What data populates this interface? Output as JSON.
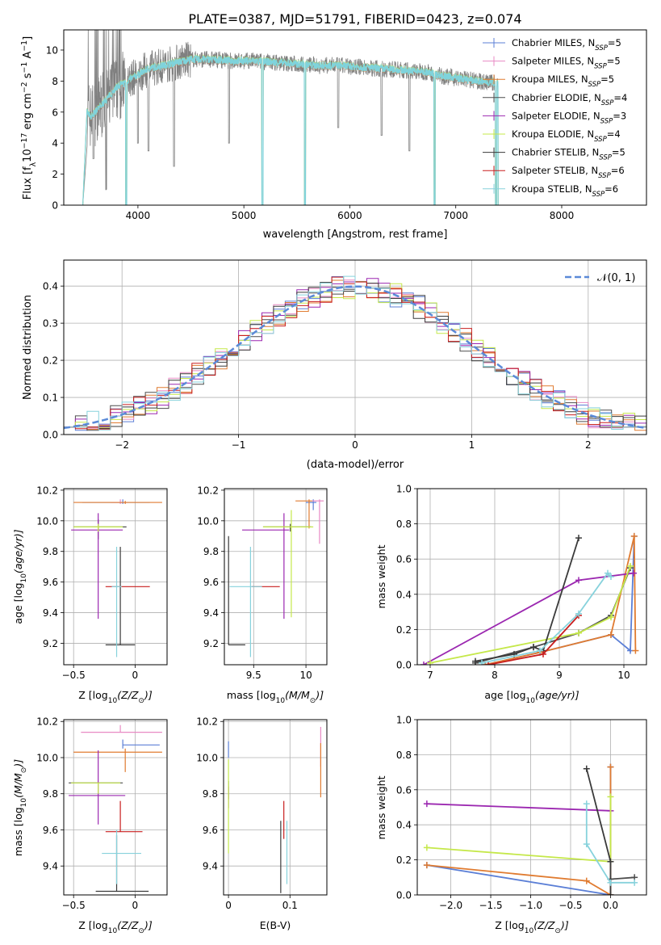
{
  "figure_title": "PLATE=0387, MJD=51791, FIBERID=0423, z=0.074",
  "models": [
    {
      "name": "Chabrier MILES, N",
      "sub": "SSP",
      "n": "=5",
      "color": "#5b7fd6"
    },
    {
      "name": "Salpeter MILES, N",
      "sub": "SSP",
      "n": "=5",
      "color": "#e88ac4"
    },
    {
      "name": "Kroupa MILES, N",
      "sub": "SSP",
      "n": "=5",
      "color": "#e07b30"
    },
    {
      "name": "Chabrier ELODIE, N",
      "sub": "SSP",
      "n": "=4",
      "color": "#4d4d4d"
    },
    {
      "name": "Salpeter ELODIE, N",
      "sub": "SSP",
      "n": "=3",
      "color": "#9b27b0"
    },
    {
      "name": "Kroupa ELODIE, N",
      "sub": "SSP",
      "n": "=4",
      "color": "#c5e84a"
    },
    {
      "name": "Chabrier STELIB, N",
      "sub": "SSP",
      "n": "=5",
      "color": "#3a3a3a"
    },
    {
      "name": "Salpeter STELIB, N",
      "sub": "SSP",
      "n": "=6",
      "color": "#c81e1e"
    },
    {
      "name": "Kroupa STELIB, N",
      "sub": "SSP",
      "n": "=6",
      "color": "#87d2dc"
    }
  ],
  "chart_data": [
    {
      "id": "spectrum",
      "type": "line",
      "xlabel": "wavelength [Angstrom, rest frame]",
      "ylabel_parts": [
        "Flux [f",
        "λ",
        "10",
        "−17",
        " erg cm",
        "−2",
        " s",
        "−1",
        " A",
        "−1",
        "]"
      ],
      "xlim": [
        3300,
        8800
      ],
      "ylim": [
        0,
        11.3
      ],
      "xticks": [
        4000,
        5000,
        6000,
        7000,
        8000
      ],
      "yticks": [
        0,
        2,
        4,
        6,
        8,
        10
      ],
      "data_color": "#808080",
      "model_color": "#7fd3dc",
      "anchor_x": [
        3520,
        3560,
        3650,
        3800,
        3950,
        4100,
        4300,
        4500,
        4700,
        4900,
        5100,
        5300,
        5500,
        5700,
        5900,
        6100,
        6300,
        6500,
        6700,
        6900,
        7100,
        7300,
        7400
      ],
      "anchor_y": [
        6.0,
        5.7,
        6.4,
        7.6,
        8.2,
        8.8,
        9.1,
        9.4,
        9.4,
        9.3,
        9.3,
        9.2,
        9.1,
        9.0,
        9.0,
        8.9,
        8.8,
        8.7,
        8.6,
        8.3,
        8.1,
        7.9,
        7.9
      ],
      "dips": [
        [
          3580,
          3.0
        ],
        [
          3700,
          1.0
        ],
        [
          3890,
          0.0
        ],
        [
          4000,
          4.0
        ],
        [
          4100,
          3.5
        ],
        [
          4340,
          2.5
        ],
        [
          4860,
          4.0
        ],
        [
          5175,
          0.0
        ],
        [
          5577,
          0.0
        ],
        [
          5890,
          5.0
        ],
        [
          6300,
          4.5
        ],
        [
          6563,
          3.5
        ],
        [
          6800,
          0.0
        ],
        [
          7380,
          0.0
        ]
      ]
    },
    {
      "id": "residual_hist",
      "type": "histogram",
      "xlabel": "(data-model)/error",
      "ylabel": "Normed distribution",
      "xlim": [
        -2.5,
        2.5
      ],
      "ylim": [
        0,
        0.47
      ],
      "xticks": [
        -2,
        -1,
        0,
        1,
        2
      ],
      "yticks": [
        0.0,
        0.1,
        0.2,
        0.3,
        0.4
      ],
      "legend_label": "𝒩(0, 1)",
      "gaussian_color": "#5b8ad8",
      "bin_width": 0.1
    },
    {
      "id": "age_vs_Z",
      "type": "errorbar",
      "xlabel": "Z [log",
      "xlabel_parts": [
        "Z [log",
        "10",
        "(Z/Z",
        "⊙",
        ")]"
      ],
      "ylabel_parts": [
        "age  [log",
        "10",
        "(age/yr)]"
      ],
      "xlim": [
        -0.58,
        0.26
      ],
      "ylim": [
        9.06,
        10.21
      ],
      "xticks": [
        -0.5,
        0.0
      ],
      "yticks": [
        9.2,
        9.4,
        9.6,
        9.8,
        10.0,
        10.2
      ],
      "points": [
        {
          "m": 0,
          "x": -0.1,
          "y": 10.12,
          "xerr": [
            0.33,
            0.22
          ],
          "yerr": [
            0.01,
            0.02
          ]
        },
        {
          "m": 1,
          "x": -0.12,
          "y": 10.12,
          "xerr": [
            0.08,
            0.05
          ],
          "yerr": [
            0.01,
            0.02
          ]
        },
        {
          "m": 2,
          "x": -0.08,
          "y": 10.12,
          "xerr": [
            0.42,
            0.3
          ],
          "yerr": [
            0.01,
            0.01
          ]
        },
        {
          "m": 3,
          "x": -0.3,
          "y": 9.96,
          "xerr": [
            0.2,
            0.23
          ],
          "yerr": [
            0.08,
            0.05
          ]
        },
        {
          "m": 4,
          "x": -0.3,
          "y": 9.94,
          "xerr": [
            0.22,
            0.2
          ],
          "yerr": [
            0.58,
            0.11
          ]
        },
        {
          "m": 5,
          "x": -0.3,
          "y": 9.96,
          "xerr": [
            0.2,
            0.2
          ],
          "yerr": [
            0.03,
            0.02
          ]
        },
        {
          "m": 6,
          "x": -0.12,
          "y": 9.19,
          "xerr": [
            0.12,
            0.12
          ],
          "yerr": [
            0.0,
            0.64
          ]
        },
        {
          "m": 7,
          "x": -0.12,
          "y": 9.57,
          "xerr": [
            0.12,
            0.24
          ],
          "yerr": [
            0.0,
            0.0
          ]
        },
        {
          "m": 8,
          "x": -0.15,
          "y": 9.57,
          "xerr": [
            0.04,
            0.04
          ],
          "yerr": [
            0.46,
            0.26
          ]
        }
      ]
    },
    {
      "id": "age_vs_mass",
      "type": "errorbar",
      "xlabel_parts": [
        "mass [log",
        "10",
        "(M/M",
        "⊙",
        ")]"
      ],
      "xlim": [
        9.22,
        10.2
      ],
      "ylim": [
        9.06,
        10.21
      ],
      "xticks": [
        9.5,
        10.0
      ],
      "yticks": [
        9.2,
        9.4,
        9.6,
        9.8,
        10.0,
        10.2
      ],
      "points": [
        {
          "m": 0,
          "x": 10.07,
          "y": 10.12,
          "xerr": [
            0.07,
            0.03
          ],
          "yerr": [
            0.05,
            0.02
          ]
        },
        {
          "m": 1,
          "x": 10.13,
          "y": 10.13,
          "xerr": [
            0.07,
            0.04
          ],
          "yerr": [
            0.28,
            0.01
          ]
        },
        {
          "m": 2,
          "x": 10.03,
          "y": 10.13,
          "xerr": [
            0.13,
            0.03
          ],
          "yerr": [
            0.18,
            0.01
          ]
        },
        {
          "m": 3,
          "x": 9.85,
          "y": 9.96,
          "xerr": [
            0.26,
            0.2
          ],
          "yerr": [
            0.03,
            0.02
          ]
        },
        {
          "m": 4,
          "x": 9.79,
          "y": 9.94,
          "xerr": [
            0.4,
            0.05
          ],
          "yerr": [
            0.58,
            0.11
          ]
        },
        {
          "m": 5,
          "x": 9.86,
          "y": 9.96,
          "xerr": [
            0.27,
            0.21
          ],
          "yerr": [
            0.59,
            0.11
          ]
        },
        {
          "m": 6,
          "x": 9.26,
          "y": 9.19,
          "xerr": [
            0.0,
            0.16
          ],
          "yerr": [
            0.0,
            0.71
          ]
        },
        {
          "m": 7,
          "x": 9.59,
          "y": 9.57,
          "xerr": [
            0.11,
            0.16
          ],
          "yerr": [
            0.0,
            0.0
          ]
        },
        {
          "m": 8,
          "x": 9.47,
          "y": 9.57,
          "xerr": [
            0.2,
            0.11
          ],
          "yerr": [
            0.46,
            0.26
          ]
        }
      ]
    },
    {
      "id": "massweight_vs_age",
      "type": "line",
      "xlabel_parts": [
        "age  [log",
        "10",
        "(age/yr)]"
      ],
      "ylabel": "mass weight",
      "xlim": [
        6.8,
        10.35
      ],
      "ylim": [
        0,
        1.0
      ],
      "xticks": [
        7,
        8,
        9,
        10
      ],
      "yticks": [
        0.0,
        0.2,
        0.4,
        0.6,
        0.8,
        1.0
      ],
      "series": [
        {
          "m": 0,
          "x": [
            7.85,
            8.7,
            9.8,
            10.1,
            10.16
          ],
          "y": [
            0.0,
            0.07,
            0.17,
            0.08,
            0.73
          ]
        },
        {
          "m": 2,
          "x": [
            7.85,
            8.7,
            9.8,
            10.16,
            10.18
          ],
          "y": [
            0.0,
            0.07,
            0.17,
            0.73,
            0.08
          ]
        },
        {
          "m": 3,
          "x": [
            7.7,
            8.6,
            9.3,
            9.8,
            10.1
          ],
          "y": [
            0.01,
            0.1,
            0.18,
            0.28,
            0.55
          ]
        },
        {
          "m": 4,
          "x": [
            6.9,
            9.3,
            10.15
          ],
          "y": [
            0.0,
            0.48,
            0.52
          ]
        },
        {
          "m": 5,
          "x": [
            7.0,
            9.3,
            9.8,
            10.1
          ],
          "y": [
            0.01,
            0.18,
            0.27,
            0.56
          ]
        },
        {
          "m": 6,
          "x": [
            7.7,
            8.3,
            8.6,
            8.75,
            9.3
          ],
          "y": [
            0.02,
            0.06,
            0.1,
            0.08,
            0.72
          ]
        },
        {
          "m": 7,
          "x": [
            7.9,
            8.75,
            9.3
          ],
          "y": [
            0.0,
            0.06,
            0.28
          ]
        },
        {
          "m": 8,
          "x": [
            7.8,
            8.7,
            9.3,
            9.75,
            9.8
          ],
          "y": [
            0.01,
            0.08,
            0.29,
            0.52,
            0.5
          ]
        }
      ]
    },
    {
      "id": "mass_vs_Z",
      "type": "errorbar",
      "xlabel_parts": [
        "Z [log",
        "10",
        "(Z/Z",
        "⊙",
        ")]"
      ],
      "ylabel_parts": [
        "mass [log",
        "10",
        "(M/M",
        "⊙",
        ")]"
      ],
      "xlim": [
        -0.58,
        0.26
      ],
      "ylim": [
        9.24,
        10.21
      ],
      "xticks": [
        -0.5,
        0.0
      ],
      "yticks": [
        9.4,
        9.6,
        9.8,
        10.0,
        10.2
      ],
      "points": [
        {
          "m": 0,
          "x": -0.1,
          "y": 10.07,
          "xerr": [
            0.0,
            0.3
          ],
          "yerr": [
            0.02,
            0.03
          ]
        },
        {
          "m": 1,
          "x": -0.12,
          "y": 10.14,
          "xerr": [
            0.32,
            0.34
          ],
          "yerr": [
            0.0,
            0.04
          ]
        },
        {
          "m": 2,
          "x": -0.08,
          "y": 10.03,
          "xerr": [
            0.42,
            0.3
          ],
          "yerr": [
            0.11,
            0.02
          ]
        },
        {
          "m": 3,
          "x": -0.3,
          "y": 9.86,
          "xerr": [
            0.24,
            0.2
          ],
          "yerr": [
            0.0,
            0.0
          ]
        },
        {
          "m": 4,
          "x": -0.3,
          "y": 9.79,
          "xerr": [
            0.24,
            0.22
          ],
          "yerr": [
            0.16,
            0.25
          ]
        },
        {
          "m": 5,
          "x": -0.3,
          "y": 9.86,
          "xerr": [
            0.22,
            0.18
          ],
          "yerr": [
            0.06,
            0.0
          ]
        },
        {
          "m": 6,
          "x": -0.15,
          "y": 9.26,
          "xerr": [
            0.17,
            0.26
          ],
          "yerr": [
            0.0,
            0.31
          ]
        },
        {
          "m": 7,
          "x": -0.12,
          "y": 9.59,
          "xerr": [
            0.12,
            0.18
          ],
          "yerr": [
            0.0,
            0.17
          ]
        },
        {
          "m": 8,
          "x": -0.15,
          "y": 9.47,
          "xerr": [
            0.12,
            0.2
          ],
          "yerr": [
            0.17,
            0.13
          ]
        }
      ]
    },
    {
      "id": "mass_vs_ebv",
      "type": "errorbar",
      "xlabel": "E(B-V)",
      "xlim": [
        -0.008,
        0.16
      ],
      "ylim": [
        9.24,
        10.21
      ],
      "xticks": [
        0.0,
        0.1
      ],
      "yticks": [
        9.4,
        9.6,
        9.8,
        10.0,
        10.2
      ],
      "points": [
        {
          "m": 0,
          "x": 0.0,
          "y": 10.04,
          "xerr": [
            0,
            0
          ],
          "yerr": [
            0.04,
            0.05
          ]
        },
        {
          "m": 1,
          "x": 0.15,
          "y": 10.05,
          "xerr": [
            0,
            0
          ],
          "yerr": [
            0.1,
            0.12
          ]
        },
        {
          "m": 2,
          "x": 0.15,
          "y": 9.98,
          "xerr": [
            0,
            0
          ],
          "yerr": [
            0.2,
            0.1
          ]
        },
        {
          "m": 3,
          "x": 0.0,
          "y": 9.82,
          "xerr": [
            0,
            0
          ],
          "yerr": [
            0.05,
            0.05
          ]
        },
        {
          "m": 4,
          "x": 0.0,
          "y": 9.78,
          "xerr": [
            0,
            0
          ],
          "yerr": [
            0.06,
            0.06
          ]
        },
        {
          "m": 5,
          "x": 0.0,
          "y": 9.74,
          "xerr": [
            0,
            0
          ],
          "yerr": [
            0.27,
            0.25
          ]
        },
        {
          "m": 6,
          "x": 0.085,
          "y": 9.45,
          "xerr": [
            0,
            0
          ],
          "yerr": [
            0.2,
            0.2
          ]
        },
        {
          "m": 7,
          "x": 0.09,
          "y": 9.6,
          "xerr": [
            0,
            0
          ],
          "yerr": [
            0.05,
            0.16
          ]
        },
        {
          "m": 8,
          "x": 0.095,
          "y": 9.5,
          "xerr": [
            0,
            0
          ],
          "yerr": [
            0.2,
            0.15
          ]
        }
      ]
    },
    {
      "id": "massweight_vs_Z",
      "type": "line",
      "xlabel_parts": [
        "Z [log",
        "10",
        "(Z/Z",
        "⊙",
        ")]"
      ],
      "ylabel": "mass weight",
      "xlim": [
        -2.42,
        0.45
      ],
      "ylim": [
        0,
        1.0
      ],
      "xticks": [
        -2.0,
        -1.5,
        -1.0,
        -0.5,
        0.0
      ],
      "xticklabels": [
        "−2.0",
        "−1.5",
        "−1.0",
        "−0.5",
        "0.0"
      ],
      "yticks": [
        0.0,
        0.2,
        0.4,
        0.6,
        0.8,
        1.0
      ],
      "series": [
        {
          "m": 0,
          "x": [
            -2.3,
            0.0,
            0.0
          ],
          "y": [
            0.17,
            0.0,
            0.73
          ]
        },
        {
          "m": 2,
          "x": [
            -2.3,
            -0.3,
            0.0,
            0.0
          ],
          "y": [
            0.17,
            0.08,
            0.0,
            0.73
          ]
        },
        {
          "m": 3,
          "x": [
            0.0,
            0.3
          ],
          "y": [
            0.09,
            0.1
          ]
        },
        {
          "m": 4,
          "x": [
            -2.3,
            0.0
          ],
          "y": [
            0.52,
            0.48
          ]
        },
        {
          "m": 5,
          "x": [
            -2.3,
            0.0,
            0.0
          ],
          "y": [
            0.27,
            0.19,
            0.56
          ]
        },
        {
          "m": 6,
          "x": [
            -0.3,
            0.0,
            0.0
          ],
          "y": [
            0.72,
            0.19,
            0.0
          ]
        },
        {
          "m": 8,
          "x": [
            -0.3,
            -0.3,
            0.0,
            0.3
          ],
          "y": [
            0.52,
            0.29,
            0.07,
            0.07
          ]
        }
      ]
    }
  ]
}
